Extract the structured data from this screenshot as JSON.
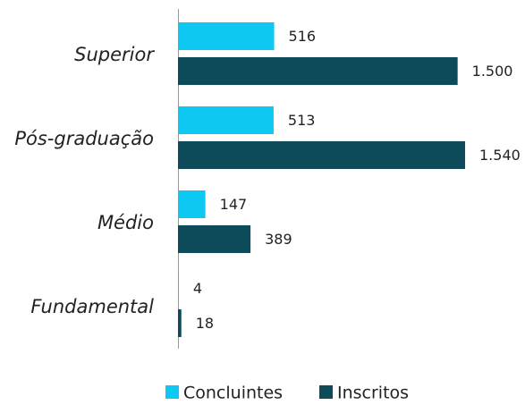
{
  "chart_data": {
    "type": "hbar",
    "categories": [
      "Superior",
      "Pós-graduação",
      "Médio",
      "Fundamental"
    ],
    "series": [
      {
        "name": "Concluintes",
        "color": "#0dc8f0",
        "values": [
          516,
          513,
          147,
          4
        ]
      },
      {
        "name": "Inscritos",
        "color": "#0d4b5b",
        "values": [
          1500,
          1540,
          389,
          18
        ],
        "value_labels": [
          "1.500",
          "1.540",
          "389",
          "18"
        ]
      }
    ],
    "legend": "bottom"
  }
}
